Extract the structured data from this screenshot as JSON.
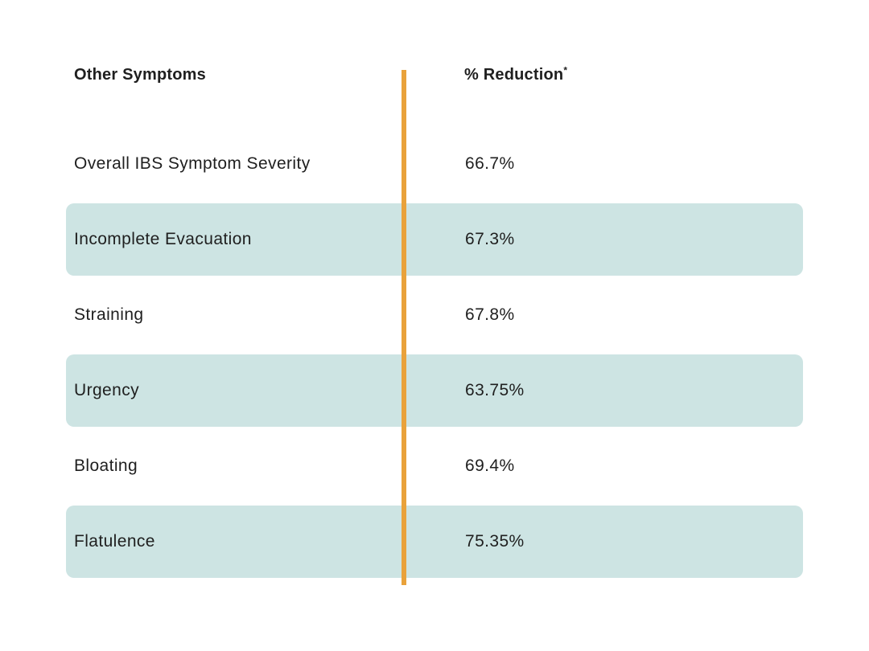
{
  "table": {
    "header": {
      "col1": "Other Symptoms",
      "col2": "% Reduction",
      "footnote_marker": "*"
    },
    "rows": [
      {
        "symptom": "Overall IBS Symptom Severity",
        "reduction": "66.7%",
        "highlighted": false
      },
      {
        "symptom": "Incomplete Evacuation",
        "reduction": "67.3%",
        "highlighted": true
      },
      {
        "symptom": "Straining",
        "reduction": "67.8%",
        "highlighted": false
      },
      {
        "symptom": "Urgency",
        "reduction": "63.75%",
        "highlighted": true
      },
      {
        "symptom": "Bloating",
        "reduction": "69.4%",
        "highlighted": false
      },
      {
        "symptom": "Flatulence",
        "reduction": "75.35%",
        "highlighted": true
      }
    ]
  },
  "colors": {
    "background": "#ffffff",
    "row_highlight": "#cde4e3",
    "divider": "#e9a23b",
    "text": "#1f1f1f"
  },
  "chart_data": {
    "type": "table",
    "title": "",
    "columns": [
      "Other Symptoms",
      "% Reduction*"
    ],
    "rows": [
      [
        "Overall IBS Symptom Severity",
        "66.7%"
      ],
      [
        "Incomplete Evacuation",
        "67.3%"
      ],
      [
        "Straining",
        "67.8%"
      ],
      [
        "Urgency",
        "63.75%"
      ],
      [
        "Bloating",
        "69.4%"
      ],
      [
        "Flatulence",
        "75.35%"
      ]
    ],
    "values": [
      66.7,
      67.3,
      67.8,
      63.75,
      69.4,
      75.35
    ],
    "layout": {
      "alternating_row_highlight": true,
      "vertical_divider_between_columns": true,
      "divider_color": "#e9a23b",
      "highlight_color": "#cde4e3"
    }
  }
}
